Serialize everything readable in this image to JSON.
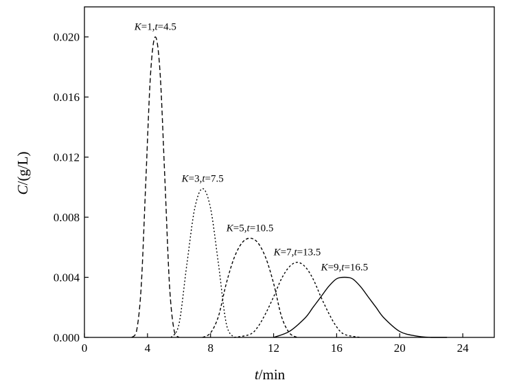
{
  "chart_data": {
    "type": "line",
    "xlabel": {
      "var": "t",
      "unit": "/min"
    },
    "ylabel": {
      "var": "C",
      "unit": "/(g/L)"
    },
    "xlim": [
      0,
      26
    ],
    "ylim": [
      0,
      0.022
    ],
    "xticks": [
      0,
      4,
      8,
      12,
      16,
      20,
      24
    ],
    "xtick_labels": [
      "0",
      "4",
      "8",
      "12",
      "16",
      "20",
      "24"
    ],
    "yticks": [
      0,
      0.004,
      0.008,
      0.012,
      0.016,
      0.02
    ],
    "ytick_labels": [
      "0.000",
      "0.004",
      "0.008",
      "0.012",
      "0.016",
      "0.020"
    ],
    "grid": false,
    "legend": "none",
    "series": [
      {
        "annotation": {
          "k_label": "K",
          "k_value": "=1,",
          "t_label": "t",
          "t_value": "=4.5"
        },
        "line_style": "long-dash",
        "x": [
          3.0,
          3.3,
          3.6,
          3.9,
          4.2,
          4.5,
          4.8,
          5.1,
          5.4,
          5.7,
          6.0
        ],
        "y": [
          0.0,
          0.0004,
          0.0034,
          0.0106,
          0.0176,
          0.02,
          0.0176,
          0.0106,
          0.0034,
          0.0004,
          0.0
        ]
      },
      {
        "annotation": {
          "k_label": "K",
          "k_value": "=3,",
          "t_label": "t",
          "t_value": "=7.5"
        },
        "line_style": "fine-dot",
        "x": [
          5.5,
          6.0,
          6.5,
          7.0,
          7.5,
          8.0,
          8.5,
          9.0,
          9.5
        ],
        "y": [
          0.0,
          0.0009,
          0.0049,
          0.0086,
          0.0099,
          0.0086,
          0.0049,
          0.0009,
          0.0
        ]
      },
      {
        "annotation": {
          "k_label": "K",
          "k_value": "=5,",
          "t_label": "t",
          "t_value": "=10.5"
        },
        "line_style": "short-dash",
        "x": [
          7.5,
          8.0,
          8.5,
          9.0,
          9.5,
          10.0,
          10.5,
          11.0,
          11.5,
          12.0,
          12.5,
          13.0,
          13.5
        ],
        "y": [
          0.0,
          0.0003,
          0.0014,
          0.0036,
          0.0053,
          0.0063,
          0.0066,
          0.0063,
          0.0053,
          0.0036,
          0.0014,
          0.0003,
          0.0
        ]
      },
      {
        "annotation": {
          "k_label": "K",
          "k_value": "=7,",
          "t_label": "t",
          "t_value": "=13.5"
        },
        "line_style": "dot",
        "x": [
          9.5,
          10.5,
          11.0,
          11.5,
          12.0,
          12.5,
          13.0,
          13.5,
          14.0,
          14.5,
          15.0,
          15.5,
          16.0,
          16.5,
          17.5
        ],
        "y": [
          0.0,
          0.0002,
          0.0007,
          0.0016,
          0.0027,
          0.0039,
          0.0047,
          0.005,
          0.0047,
          0.0039,
          0.0027,
          0.0016,
          0.0007,
          0.0002,
          0.0
        ]
      },
      {
        "annotation": {
          "k_label": "K",
          "k_value": "=9,",
          "t_label": "t",
          "t_value": "=16.5"
        },
        "line_style": "solid",
        "x": [
          12.0,
          13.0,
          14.0,
          14.5,
          15.0,
          15.5,
          16.0,
          16.5,
          17.0,
          17.5,
          18.0,
          18.5,
          19.0,
          20.0,
          21.0,
          22.0,
          23.0
        ],
        "y": [
          0.0,
          0.0004,
          0.0013,
          0.002,
          0.0027,
          0.0034,
          0.0039,
          0.004,
          0.0039,
          0.0034,
          0.0027,
          0.002,
          0.0013,
          0.0004,
          0.0001,
          0.0,
          0.0
        ]
      }
    ]
  }
}
